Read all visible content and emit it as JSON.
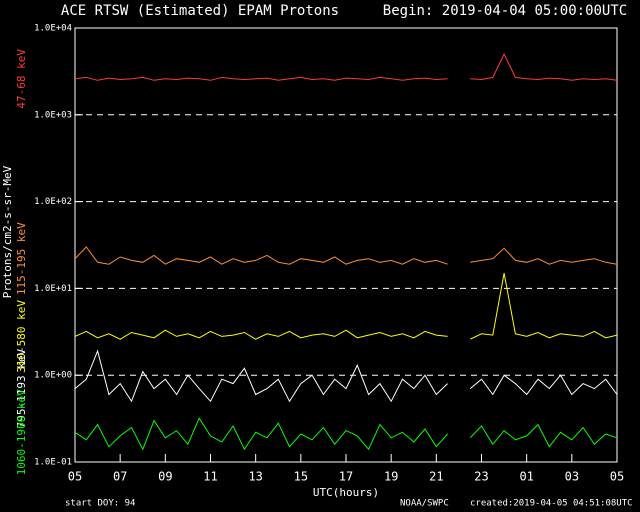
{
  "chart_data": {
    "type": "line",
    "title": "ACE RTSW (Estimated) EPAM Protons",
    "subtitle": "Begin: 2019-04-04 05:00:00UTC",
    "x_label": "UTC(hours)",
    "y_label": "Protons/cm2-s-sr-MeV",
    "footer_left": "start DOY:  94",
    "footer_center": "NOAA/SWPC",
    "footer_right": "created:2019-04-05 04:51:08UTC",
    "log_y": true,
    "grid": true,
    "x": [
      0,
      0.5,
      1,
      1.5,
      2,
      2.5,
      3,
      3.5,
      4,
      4.5,
      5,
      5.5,
      6,
      6.5,
      7,
      7.5,
      8,
      8.5,
      9,
      9.5,
      10,
      10.5,
      11,
      11.5,
      12,
      12.5,
      13,
      13.5,
      14,
      14.5,
      15,
      15.5,
      16,
      16.5,
      17,
      17.5,
      18,
      18.5,
      19,
      19.5,
      20,
      20.5,
      21,
      21.5,
      22,
      22.5,
      23,
      23.5,
      24
    ],
    "xlim": [
      0,
      24
    ],
    "xticks": [
      {
        "value": 0,
        "label": "05"
      },
      {
        "value": 2,
        "label": "07"
      },
      {
        "value": 4,
        "label": "09"
      },
      {
        "value": 6,
        "label": "11"
      },
      {
        "value": 8,
        "label": "13"
      },
      {
        "value": 10,
        "label": "15"
      },
      {
        "value": 12,
        "label": "17"
      },
      {
        "value": 14,
        "label": "19"
      },
      {
        "value": 16,
        "label": "21"
      },
      {
        "value": 18,
        "label": "23"
      },
      {
        "value": 20,
        "label": "01"
      },
      {
        "value": 22,
        "label": "03"
      },
      {
        "value": 24,
        "label": "05"
      }
    ],
    "ylim": [
      0.1,
      10000
    ],
    "yticks": [
      {
        "value": 0.1,
        "label": "1.0E-01"
      },
      {
        "value": 1,
        "label": "1.0E+00"
      },
      {
        "value": 10,
        "label": "1.0E+01"
      },
      {
        "value": 100,
        "label": "1.0E+02"
      },
      {
        "value": 1000,
        "label": "1.0E+03"
      },
      {
        "value": 10000,
        "label": "1.0E+04"
      }
    ],
    "series": [
      {
        "name": "47-68 keV",
        "color": "#ff3a3a",
        "values": [
          2600,
          2700,
          2500,
          2650,
          2550,
          2600,
          2700,
          2500,
          2600,
          2550,
          2650,
          2600,
          2500,
          2700,
          2600,
          2550,
          2600,
          2650,
          2500,
          2600,
          2700,
          2550,
          2600,
          2500,
          2650,
          2600,
          2550,
          2700,
          2600,
          2500,
          2600,
          2650,
          2550,
          2600,
          null,
          2600,
          2550,
          2700,
          5000,
          2700,
          2600,
          2550,
          2650,
          2600,
          2500,
          2600,
          2550,
          2600,
          2500
        ]
      },
      {
        "name": "115-195 keV",
        "color": "#ff8c32",
        "values": [
          22,
          30,
          20,
          19,
          23,
          21,
          20,
          24,
          19,
          22,
          21,
          20,
          23,
          19,
          22,
          20,
          21,
          24,
          20,
          19,
          22,
          21,
          20,
          23,
          19,
          21,
          22,
          20,
          21,
          19,
          22,
          20,
          21,
          19,
          null,
          20,
          21,
          22,
          29,
          21,
          20,
          22,
          19,
          21,
          20,
          21,
          22,
          20,
          19
        ]
      },
      {
        "name": "310-580 keV",
        "color": "#ffff00",
        "values": [
          2.8,
          3.2,
          2.7,
          3.0,
          2.6,
          3.1,
          2.9,
          2.7,
          3.3,
          2.8,
          3.0,
          2.7,
          3.2,
          2.8,
          2.9,
          3.1,
          2.6,
          3.0,
          2.8,
          3.2,
          2.7,
          2.9,
          3.0,
          2.8,
          3.3,
          2.7,
          2.9,
          3.1,
          2.8,
          3.0,
          2.7,
          3.2,
          2.9,
          2.8,
          null,
          2.6,
          3.0,
          2.9,
          15,
          3.0,
          2.8,
          3.1,
          2.7,
          3.0,
          2.9,
          2.8,
          3.2,
          2.7,
          2.9
        ]
      },
      {
        "name": "795-1193 keV",
        "color": "#ffffff",
        "values": [
          0.7,
          0.9,
          1.9,
          0.6,
          0.8,
          0.5,
          1.1,
          0.7,
          0.9,
          0.6,
          1.0,
          0.7,
          0.5,
          0.9,
          0.8,
          1.2,
          0.6,
          0.7,
          0.9,
          0.5,
          0.8,
          1.0,
          0.6,
          0.9,
          0.7,
          1.3,
          0.6,
          0.8,
          0.5,
          0.9,
          0.7,
          1.0,
          0.6,
          0.8,
          null,
          0.7,
          0.9,
          0.6,
          1.0,
          0.8,
          0.6,
          0.9,
          0.7,
          1.0,
          0.6,
          0.8,
          0.7,
          0.9,
          0.6
        ]
      },
      {
        "name": "1060-1900 keV",
        "color": "#00ff00",
        "values": [
          0.22,
          0.18,
          0.27,
          0.15,
          0.2,
          0.25,
          0.14,
          0.3,
          0.19,
          0.23,
          0.16,
          0.32,
          0.2,
          0.17,
          0.26,
          0.14,
          0.22,
          0.19,
          0.28,
          0.15,
          0.21,
          0.18,
          0.25,
          0.16,
          0.23,
          0.2,
          0.14,
          0.27,
          0.19,
          0.22,
          0.17,
          0.24,
          0.15,
          0.21,
          null,
          0.19,
          0.26,
          0.16,
          0.23,
          0.18,
          0.2,
          0.27,
          0.15,
          0.22,
          0.18,
          0.25,
          0.16,
          0.21,
          0.19
        ]
      }
    ]
  }
}
